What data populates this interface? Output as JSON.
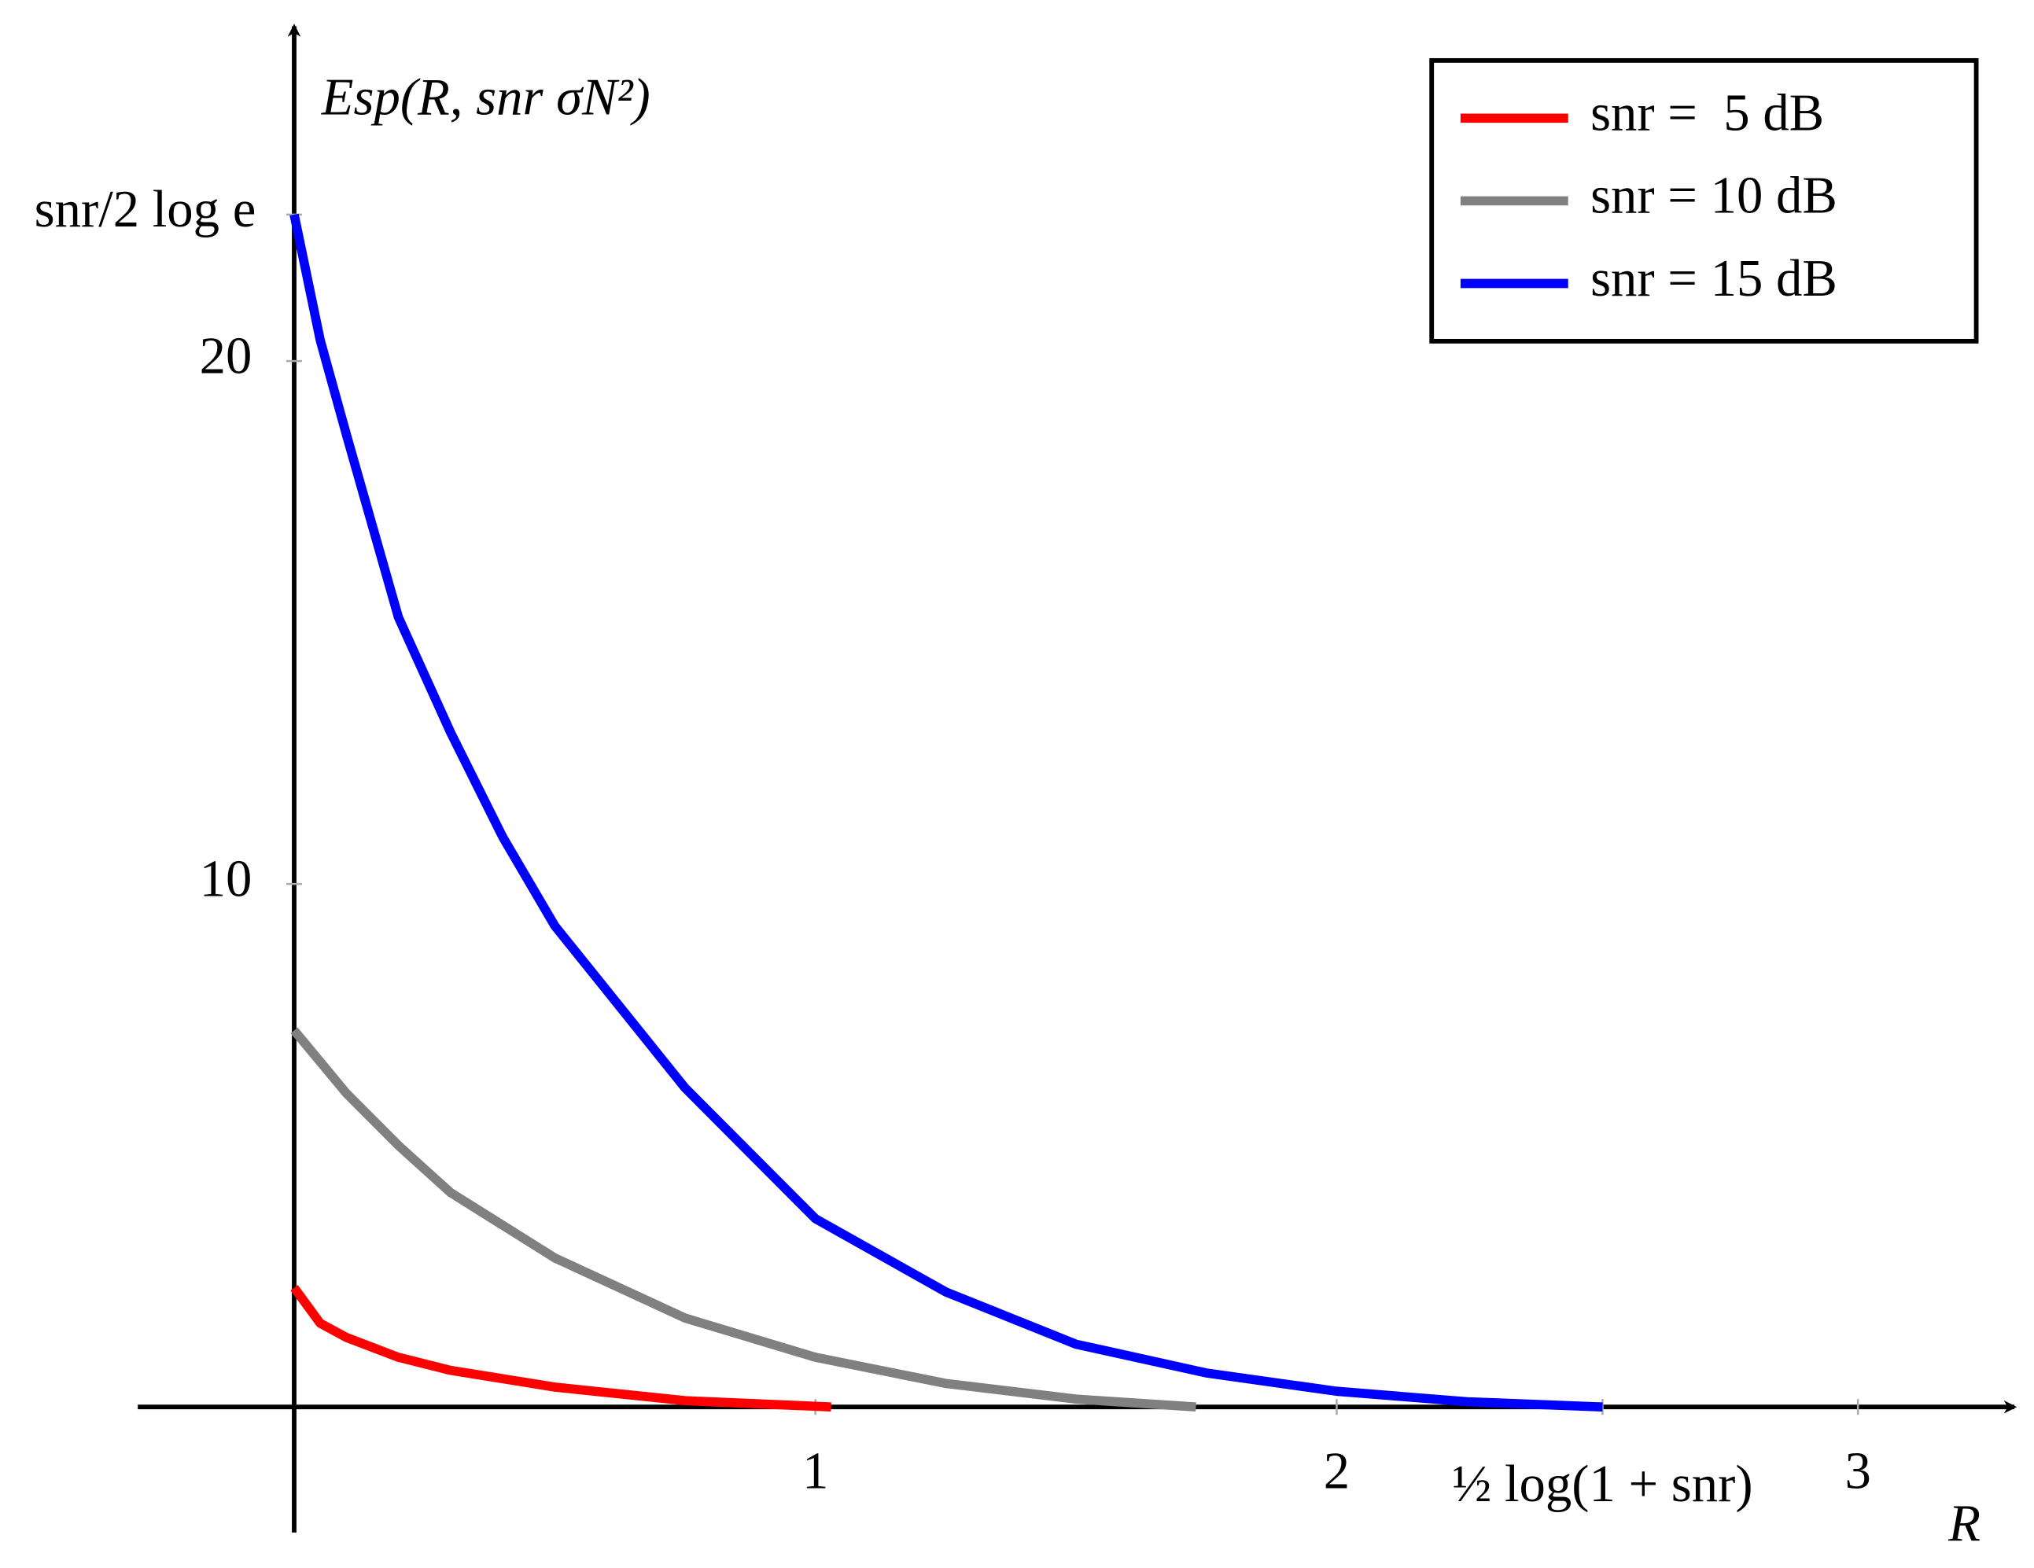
{
  "chart_data": {
    "type": "line",
    "y_label": "Esp(R, snr σN²)",
    "x_label": "R",
    "xlim": [
      -0.3,
      3.3
    ],
    "ylim": [
      -2.4,
      26.4
    ],
    "xticks": [
      1,
      2,
      {
        "value": 2.51,
        "label": "½ log(1 + snr)"
      },
      3
    ],
    "yticks": [
      10,
      20,
      {
        "value": 22.8,
        "label": "snr/2 log e"
      }
    ],
    "grid": false,
    "legend": "upper right",
    "series": [
      {
        "name": "snr =  5 dB",
        "color": "#ff0000",
        "x": [
          0,
          0.05,
          0.1,
          0.2,
          0.3,
          0.5,
          0.75,
          1.03
        ],
        "values": [
          2.28,
          1.6,
          1.33,
          0.95,
          0.7,
          0.38,
          0.12,
          0
        ]
      },
      {
        "name": "snr = 10 dB",
        "color": "#808080",
        "x": [
          0,
          0.05,
          0.1,
          0.2,
          0.3,
          0.5,
          0.75,
          1.0,
          1.25,
          1.5,
          1.73
        ],
        "values": [
          7.2,
          6.6,
          6.0,
          5.0,
          4.1,
          2.85,
          1.7,
          0.95,
          0.45,
          0.15,
          0
        ]
      },
      {
        "name": "snr = 15 dB",
        "color": "#0000ff",
        "x": [
          0,
          0.05,
          0.1,
          0.2,
          0.3,
          0.4,
          0.5,
          0.75,
          1.0,
          1.25,
          1.5,
          1.75,
          2.0,
          2.25,
          2.51
        ],
        "values": [
          22.8,
          20.4,
          18.6,
          15.1,
          12.9,
          10.9,
          9.2,
          6.1,
          3.6,
          2.2,
          1.2,
          0.65,
          0.3,
          0.1,
          0
        ]
      }
    ]
  }
}
